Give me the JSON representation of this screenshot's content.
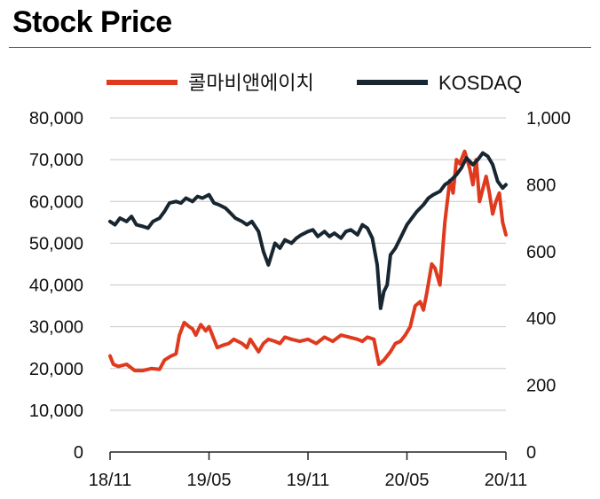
{
  "title": "Stock Price",
  "chart_data": {
    "type": "line",
    "title": "Stock Price",
    "x_ticks": [
      "18/11",
      "19/05",
      "19/11",
      "20/05",
      "20/11"
    ],
    "left_axis": {
      "min": 0,
      "max": 80000,
      "ticks": [
        "0",
        "10,000",
        "20,000",
        "30,000",
        "40,000",
        "50,000",
        "60,000",
        "70,000",
        "80,000"
      ]
    },
    "right_axis": {
      "min": 0,
      "max": 1000,
      "ticks": [
        "0",
        "200",
        "400",
        "600",
        "800",
        "1,000"
      ]
    },
    "x_range": [
      0,
      24
    ],
    "grid": true,
    "legend_position": "top",
    "series": [
      {
        "name": "콜마비앤에이치",
        "axis": "left",
        "color": "#e03a1e",
        "x": [
          0,
          0.2,
          0.5,
          1.0,
          1.5,
          2.0,
          2.5,
          3.0,
          3.3,
          3.7,
          4.0,
          4.2,
          4.5,
          4.8,
          5.0,
          5.2,
          5.5,
          5.8,
          6.0,
          6.3,
          6.5,
          6.8,
          7.2,
          7.5,
          8.0,
          8.3,
          8.5,
          9.0,
          9.3,
          9.6,
          10.0,
          10.3,
          10.6,
          11.0,
          11.5,
          12.0,
          12.5,
          13.0,
          13.5,
          14.0,
          14.5,
          15.0,
          15.3,
          15.6,
          16.0,
          16.3,
          16.6,
          17.0,
          17.3,
          17.6,
          17.9,
          18.2,
          18.5,
          18.8,
          19.0,
          19.2,
          19.5,
          19.7,
          20.0,
          20.3,
          20.6,
          20.8,
          21.0,
          21.2,
          21.5,
          21.8,
          22.0,
          22.2,
          22.4,
          22.6,
          22.8,
          23.0,
          23.2,
          23.4,
          23.6,
          23.8,
          24.0
        ],
        "y": [
          23000,
          21000,
          20500,
          21000,
          19500,
          19500,
          20000,
          19800,
          22000,
          23000,
          23500,
          28000,
          31000,
          30000,
          29500,
          28000,
          30500,
          29000,
          30000,
          27000,
          25000,
          25500,
          26000,
          27000,
          26000,
          25000,
          27000,
          24000,
          26000,
          27000,
          26500,
          26000,
          27500,
          27000,
          26500,
          27000,
          26000,
          27500,
          26500,
          28000,
          27500,
          27000,
          26500,
          27500,
          27000,
          21000,
          22000,
          24000,
          26000,
          26500,
          28000,
          30000,
          35000,
          36000,
          34000,
          38000,
          45000,
          44000,
          40000,
          55000,
          65000,
          62000,
          70000,
          69000,
          72000,
          68000,
          64000,
          70000,
          60000,
          63000,
          66000,
          62000,
          57000,
          60000,
          62000,
          55000,
          52000
        ]
      },
      {
        "name": "KOSDAQ",
        "axis": "right",
        "color": "#172630",
        "x": [
          0,
          0.3,
          0.6,
          1.0,
          1.3,
          1.6,
          2.0,
          2.3,
          2.6,
          3.0,
          3.3,
          3.6,
          4.0,
          4.3,
          4.6,
          5.0,
          5.3,
          5.6,
          6.0,
          6.3,
          6.6,
          7.0,
          7.3,
          7.6,
          8.0,
          8.3,
          8.6,
          9.0,
          9.3,
          9.6,
          10.0,
          10.3,
          10.6,
          11.0,
          11.3,
          11.6,
          12.0,
          12.3,
          12.6,
          13.0,
          13.3,
          13.6,
          14.0,
          14.3,
          14.6,
          15.0,
          15.3,
          15.6,
          15.9,
          16.2,
          16.4,
          16.6,
          16.8,
          17.0,
          17.3,
          17.6,
          18.0,
          18.3,
          18.6,
          19.0,
          19.3,
          19.6,
          20.0,
          20.3,
          20.6,
          21.0,
          21.3,
          21.6,
          22.0,
          22.3,
          22.6,
          22.9,
          23.2,
          23.5,
          23.8,
          24.0
        ],
        "y": [
          690,
          680,
          700,
          690,
          705,
          680,
          675,
          670,
          690,
          700,
          720,
          745,
          750,
          745,
          760,
          750,
          765,
          760,
          770,
          745,
          740,
          730,
          715,
          700,
          690,
          680,
          690,
          660,
          600,
          560,
          625,
          610,
          635,
          625,
          640,
          650,
          660,
          665,
          645,
          660,
          645,
          655,
          640,
          660,
          665,
          650,
          680,
          670,
          640,
          560,
          430,
          480,
          500,
          590,
          610,
          640,
          680,
          700,
          720,
          740,
          760,
          770,
          780,
          800,
          810,
          830,
          850,
          880,
          860,
          875,
          895,
          885,
          860,
          810,
          790,
          800
        ]
      }
    ]
  }
}
